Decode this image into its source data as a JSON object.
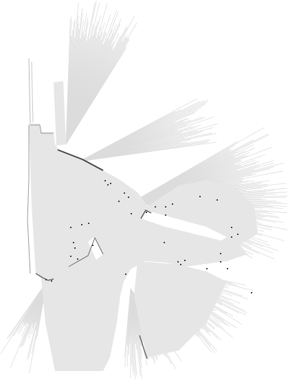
{
  "map": {
    "kind": "occupancy-grid",
    "free_color": "#e6e6e6",
    "ray_color": "#dcdcdc",
    "wall_color": "#555555",
    "obstacle_color": "#3a3a3a",
    "background_color": "#ffffff"
  }
}
